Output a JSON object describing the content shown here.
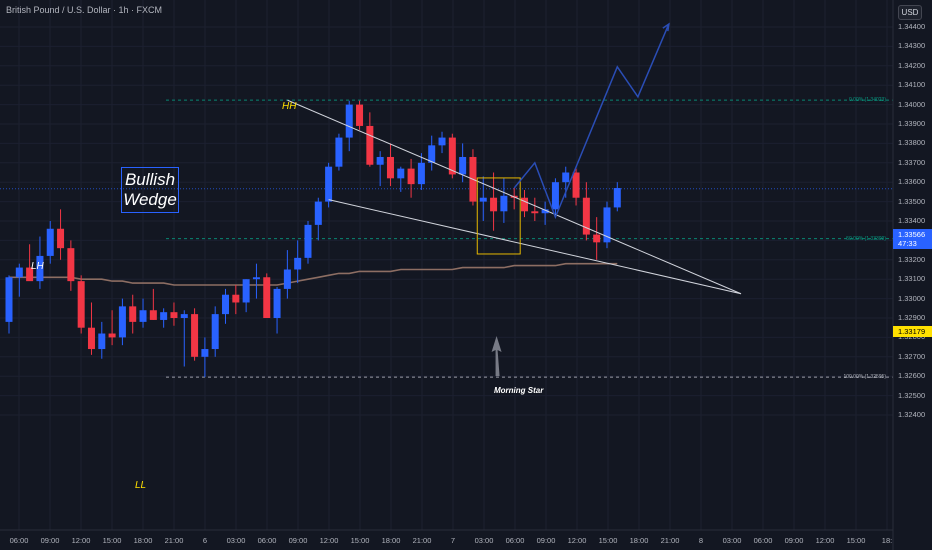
{
  "header": {
    "title": "British Pound / U.S. Dollar · 1h · FXCM",
    "currency": "USD"
  },
  "axis": {
    "price_ticks": [
      "1.34400",
      "1.34300",
      "1.34200",
      "1.34100",
      "1.34000",
      "1.33900",
      "1.33800",
      "1.33700",
      "1.33600",
      "1.33500",
      "1.33400",
      "1.33300",
      "1.33200",
      "1.33100",
      "1.33000",
      "1.32900",
      "1.32800",
      "1.32700",
      "1.32600",
      "1.32500",
      "1.32400"
    ],
    "time_ticks": [
      "06:00",
      "09:00",
      "12:00",
      "15:00",
      "18:00",
      "21:00",
      "6",
      "03:00",
      "06:00",
      "09:00",
      "12:00",
      "15:00",
      "18:00",
      "21:00",
      "7",
      "03:00",
      "06:00",
      "09:00",
      "12:00",
      "15:00",
      "18:00",
      "21:00",
      "8",
      "03:00",
      "06:00",
      "09:00",
      "12:00",
      "15:00",
      "18:"
    ]
  },
  "current_price": {
    "value": "1.33566",
    "countdown": "47:33",
    "color": "#2962ff"
  },
  "ma_price": {
    "value": "1.33179",
    "color": "#ffe000"
  },
  "annotations": {
    "hh": "HH",
    "lh": "LH",
    "ll": "LL",
    "bullish_wedge": [
      "Bullish",
      "Wedge"
    ],
    "morning_star": "Morning Star"
  },
  "fib_levels": [
    {
      "label": "0.00% (1.34023)",
      "price": 1.34023,
      "color": "#089981"
    },
    {
      "label": "50.00% (1.33309)",
      "price": 1.33309,
      "color": "#089981"
    },
    {
      "label": "100.00% (1.32595)",
      "price": 1.32595,
      "color": "#b2b5be"
    }
  ],
  "colors": {
    "background": "#131722",
    "up": "#2962ff",
    "down": "#f23645",
    "ma": "#8d6e63",
    "projection": "#2a4db5",
    "wedge_lines": "#d1d4dc",
    "box": "#e6b800"
  },
  "chart_data": {
    "type": "candlestick",
    "title": "British Pound / U.S. Dollar · 1h · FXCM",
    "ylim": [
      1.3237,
      1.3446
    ],
    "candles": [
      {
        "o": 1.3288,
        "h": 1.3312,
        "l": 1.3282,
        "c": 1.3311
      },
      {
        "o": 1.3311,
        "h": 1.3318,
        "l": 1.3301,
        "c": 1.3316
      },
      {
        "o": 1.3316,
        "h": 1.3328,
        "l": 1.331,
        "c": 1.3309
      },
      {
        "o": 1.3309,
        "h": 1.3332,
        "l": 1.3305,
        "c": 1.3322
      },
      {
        "o": 1.3322,
        "h": 1.334,
        "l": 1.3318,
        "c": 1.3336
      },
      {
        "o": 1.3336,
        "h": 1.3346,
        "l": 1.332,
        "c": 1.3326
      },
      {
        "o": 1.3326,
        "h": 1.333,
        "l": 1.3304,
        "c": 1.3309
      },
      {
        "o": 1.3309,
        "h": 1.3312,
        "l": 1.3282,
        "c": 1.3285
      },
      {
        "o": 1.3285,
        "h": 1.3298,
        "l": 1.3271,
        "c": 1.3274
      },
      {
        "o": 1.3274,
        "h": 1.3288,
        "l": 1.3269,
        "c": 1.3282
      },
      {
        "o": 1.3282,
        "h": 1.3294,
        "l": 1.3276,
        "c": 1.328
      },
      {
        "o": 1.328,
        "h": 1.33,
        "l": 1.3276,
        "c": 1.3296
      },
      {
        "o": 1.3296,
        "h": 1.3302,
        "l": 1.3282,
        "c": 1.3288
      },
      {
        "o": 1.3288,
        "h": 1.33,
        "l": 1.3285,
        "c": 1.3294
      },
      {
        "o": 1.3294,
        "h": 1.3305,
        "l": 1.3289,
        "c": 1.3289
      },
      {
        "o": 1.3289,
        "h": 1.3295,
        "l": 1.3285,
        "c": 1.3293
      },
      {
        "o": 1.3293,
        "h": 1.3298,
        "l": 1.3286,
        "c": 1.329
      },
      {
        "o": 1.329,
        "h": 1.3294,
        "l": 1.3265,
        "c": 1.3292
      },
      {
        "o": 1.3292,
        "h": 1.3295,
        "l": 1.3268,
        "c": 1.327
      },
      {
        "o": 1.327,
        "h": 1.328,
        "l": 1.32595,
        "c": 1.3274
      },
      {
        "o": 1.3274,
        "h": 1.3296,
        "l": 1.327,
        "c": 1.3292
      },
      {
        "o": 1.3292,
        "h": 1.3305,
        "l": 1.3287,
        "c": 1.3302
      },
      {
        "o": 1.3302,
        "h": 1.3307,
        "l": 1.3292,
        "c": 1.3298
      },
      {
        "o": 1.3298,
        "h": 1.331,
        "l": 1.3293,
        "c": 1.331
      },
      {
        "o": 1.331,
        "h": 1.3318,
        "l": 1.33,
        "c": 1.3311
      },
      {
        "o": 1.3311,
        "h": 1.3313,
        "l": 1.329,
        "c": 1.329
      },
      {
        "o": 1.329,
        "h": 1.3306,
        "l": 1.3282,
        "c": 1.3305
      },
      {
        "o": 1.3305,
        "h": 1.3325,
        "l": 1.33,
        "c": 1.3315
      },
      {
        "o": 1.3315,
        "h": 1.333,
        "l": 1.3308,
        "c": 1.3321
      },
      {
        "o": 1.3321,
        "h": 1.334,
        "l": 1.3318,
        "c": 1.3338
      },
      {
        "o": 1.3338,
        "h": 1.3352,
        "l": 1.333,
        "c": 1.335
      },
      {
        "o": 1.335,
        "h": 1.337,
        "l": 1.3347,
        "c": 1.3368
      },
      {
        "o": 1.3368,
        "h": 1.3385,
        "l": 1.3366,
        "c": 1.3383
      },
      {
        "o": 1.3383,
        "h": 1.3402,
        "l": 1.3376,
        "c": 1.34
      },
      {
        "o": 1.34,
        "h": 1.3402,
        "l": 1.3387,
        "c": 1.3389
      },
      {
        "o": 1.3389,
        "h": 1.3396,
        "l": 1.3368,
        "c": 1.3369
      },
      {
        "o": 1.3369,
        "h": 1.3376,
        "l": 1.3358,
        "c": 1.3373
      },
      {
        "o": 1.3373,
        "h": 1.338,
        "l": 1.3358,
        "c": 1.3362
      },
      {
        "o": 1.3362,
        "h": 1.3368,
        "l": 1.3355,
        "c": 1.3367
      },
      {
        "o": 1.3367,
        "h": 1.3372,
        "l": 1.3352,
        "c": 1.3359
      },
      {
        "o": 1.3359,
        "h": 1.3375,
        "l": 1.3356,
        "c": 1.337
      },
      {
        "o": 1.337,
        "h": 1.3384,
        "l": 1.3366,
        "c": 1.3379
      },
      {
        "o": 1.3379,
        "h": 1.3386,
        "l": 1.3375,
        "c": 1.3383
      },
      {
        "o": 1.3383,
        "h": 1.3385,
        "l": 1.3362,
        "c": 1.3364
      },
      {
        "o": 1.3364,
        "h": 1.338,
        "l": 1.336,
        "c": 1.3373
      },
      {
        "o": 1.3373,
        "h": 1.3377,
        "l": 1.3348,
        "c": 1.335
      },
      {
        "o": 1.335,
        "h": 1.3363,
        "l": 1.334,
        "c": 1.3352
      },
      {
        "o": 1.3352,
        "h": 1.3365,
        "l": 1.3335,
        "c": 1.3345
      },
      {
        "o": 1.3345,
        "h": 1.3362,
        "l": 1.3339,
        "c": 1.3353
      },
      {
        "o": 1.3353,
        "h": 1.3357,
        "l": 1.3346,
        "c": 1.3352
      },
      {
        "o": 1.3352,
        "h": 1.3356,
        "l": 1.3342,
        "c": 1.3345
      },
      {
        "o": 1.3345,
        "h": 1.3352,
        "l": 1.334,
        "c": 1.3344
      },
      {
        "o": 1.3344,
        "h": 1.335,
        "l": 1.3338,
        "c": 1.3346
      },
      {
        "o": 1.3346,
        "h": 1.3362,
        "l": 1.3342,
        "c": 1.336
      },
      {
        "o": 1.336,
        "h": 1.3368,
        "l": 1.3352,
        "c": 1.3365
      },
      {
        "o": 1.3365,
        "h": 1.3367,
        "l": 1.3348,
        "c": 1.3352
      },
      {
        "o": 1.3352,
        "h": 1.336,
        "l": 1.333,
        "c": 1.3333
      },
      {
        "o": 1.3333,
        "h": 1.3342,
        "l": 1.332,
        "c": 1.3329
      },
      {
        "o": 1.3329,
        "h": 1.335,
        "l": 1.3326,
        "c": 1.3347
      },
      {
        "o": 1.3347,
        "h": 1.336,
        "l": 1.3345,
        "c": 1.3357
      }
    ],
    "ma": [
      1.3311,
      1.3311,
      1.3311,
      1.3311,
      1.3311,
      1.3311,
      1.3311,
      1.331,
      1.331,
      1.331,
      1.3309,
      1.3309,
      1.3308,
      1.3308,
      1.3308,
      1.3308,
      1.3307,
      1.3307,
      1.3307,
      1.3307,
      1.3307,
      1.3307,
      1.3307,
      1.3307,
      1.3307,
      1.3307,
      1.3307,
      1.3308,
      1.3309,
      1.331,
      1.3311,
      1.3312,
      1.3313,
      1.3313,
      1.3314,
      1.3314,
      1.3314,
      1.3314,
      1.3315,
      1.3315,
      1.3315,
      1.3315,
      1.3315,
      1.3315,
      1.3316,
      1.3316,
      1.3316,
      1.3316,
      1.3316,
      1.3317,
      1.3317,
      1.3317,
      1.3317,
      1.3317,
      1.3318,
      1.3318,
      1.3318,
      1.3318,
      1.3318,
      1.3318
    ],
    "projection": [
      [
        1.3357
      ],
      [
        1.337
      ],
      [
        1.3342
      ],
      [
        1.34195
      ],
      [
        1.3404
      ],
      [
        1.34415
      ]
    ]
  }
}
